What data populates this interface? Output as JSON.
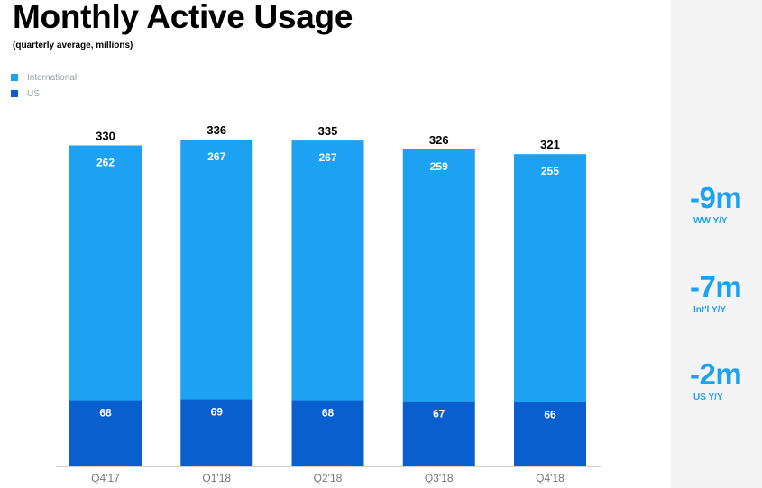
{
  "title": "Monthly Active Usage",
  "subtitle": "(quarterly average, millions)",
  "legend": [
    {
      "label": "International",
      "color": "#1da1f2"
    },
    {
      "label": "US",
      "color": "#0a5fcf"
    }
  ],
  "chart_data": {
    "type": "bar",
    "stacked": true,
    "categories": [
      "Q4'17",
      "Q1'18",
      "Q2'18",
      "Q3'18",
      "Q4'18"
    ],
    "series": [
      {
        "name": "US",
        "values": [
          68,
          69,
          68,
          67,
          66
        ],
        "color": "#0a5fcf"
      },
      {
        "name": "International",
        "values": [
          262,
          267,
          267,
          259,
          255
        ],
        "color": "#1da1f2"
      }
    ],
    "totals": [
      330,
      336,
      335,
      326,
      321
    ],
    "ylim": [
      0,
      336
    ],
    "legend_position": "top-left",
    "grid": false
  },
  "sidebar": {
    "stats": [
      {
        "value": "-9m",
        "label": "WW Y/Y"
      },
      {
        "value": "-7m",
        "label": "Int'l Y/Y"
      },
      {
        "value": "-2m",
        "label": "US Y/Y"
      }
    ]
  }
}
